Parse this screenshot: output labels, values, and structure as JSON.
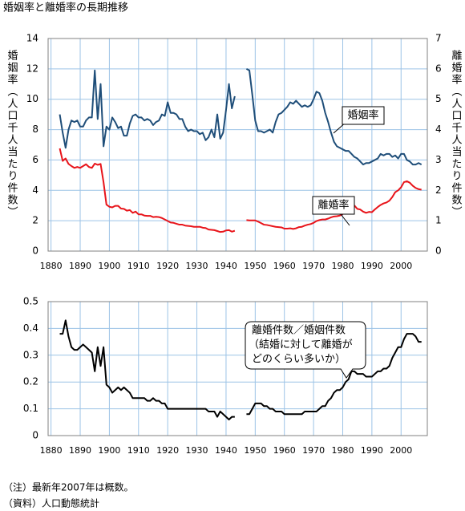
{
  "chart_data": [
    {
      "type": "line",
      "title": "婚姻率と離婚率の長期推移",
      "ylabel": "婚姻率（人口千人当たり件数）",
      "y2label": "離婚率（人口千人当たり件数）",
      "xlim": [
        1879,
        2009
      ],
      "xticks": [
        1880,
        1890,
        1900,
        1910,
        1920,
        1930,
        1940,
        1950,
        1960,
        1970,
        1980,
        1990,
        2000
      ],
      "ylim": [
        0,
        14
      ],
      "yticks": [
        0,
        2,
        4,
        6,
        8,
        10,
        12,
        14
      ],
      "y2lim": [
        0,
        7
      ],
      "y2ticks": [
        0,
        1,
        2,
        3,
        4,
        5,
        6,
        7
      ],
      "grid": true,
      "x": [
        1883,
        1884,
        1885,
        1886,
        1887,
        1888,
        1889,
        1890,
        1891,
        1892,
        1893,
        1894,
        1895,
        1896,
        1897,
        1898,
        1899,
        1900,
        1901,
        1902,
        1903,
        1904,
        1905,
        1906,
        1907,
        1908,
        1909,
        1910,
        1911,
        1912,
        1913,
        1914,
        1915,
        1916,
        1917,
        1918,
        1919,
        1920,
        1921,
        1922,
        1923,
        1924,
        1925,
        1926,
        1927,
        1928,
        1929,
        1930,
        1931,
        1932,
        1933,
        1934,
        1935,
        1936,
        1937,
        1938,
        1939,
        1940,
        1941,
        1942,
        1943,
        1944,
        1945,
        1946,
        1947,
        1948,
        1949,
        1950,
        1951,
        1952,
        1953,
        1954,
        1955,
        1956,
        1957,
        1958,
        1959,
        1960,
        1961,
        1962,
        1963,
        1964,
        1965,
        1966,
        1967,
        1968,
        1969,
        1970,
        1971,
        1972,
        1973,
        1974,
        1975,
        1976,
        1977,
        1978,
        1979,
        1980,
        1981,
        1982,
        1983,
        1984,
        1985,
        1986,
        1987,
        1988,
        1989,
        1990,
        1991,
        1992,
        1993,
        1994,
        1995,
        1996,
        1997,
        1998,
        1999,
        2000,
        2001,
        2002,
        2003,
        2004,
        2005,
        2006,
        2007
      ],
      "series": [
        {
          "name": "婚姻率",
          "color": "#1f4e79",
          "axis": "y",
          "values": [
            9.0,
            7.8,
            6.8,
            8.0,
            8.6,
            8.5,
            8.6,
            8.2,
            8.2,
            8.6,
            8.8,
            8.8,
            11.9,
            8.7,
            11.0,
            6.9,
            8.2,
            8.0,
            8.8,
            8.5,
            8.1,
            8.2,
            7.6,
            7.6,
            8.4,
            8.9,
            9.0,
            8.8,
            8.8,
            8.6,
            8.7,
            8.6,
            8.3,
            8.5,
            8.6,
            9.0,
            8.9,
            9.8,
            9.1,
            9.1,
            9.0,
            8.7,
            8.7,
            8.2,
            7.9,
            8.0,
            7.9,
            7.9,
            7.7,
            7.8,
            7.3,
            7.5,
            8.0,
            7.5,
            9.0,
            7.4,
            7.8,
            9.3,
            11.0,
            9.4,
            10.2,
            null,
            null,
            null,
            12.0,
            11.9,
            10.3,
            8.6,
            7.9,
            7.9,
            7.8,
            7.9,
            8.0,
            7.8,
            8.5,
            9.0,
            9.1,
            9.3,
            9.5,
            9.8,
            9.7,
            9.9,
            9.7,
            9.5,
            9.6,
            9.5,
            9.6,
            10.0,
            10.5,
            10.4,
            9.9,
            9.1,
            8.5,
            7.8,
            7.2,
            6.9,
            6.8,
            6.7,
            6.6,
            6.6,
            6.4,
            6.2,
            6.1,
            5.9,
            5.7,
            5.8,
            5.8,
            5.9,
            6.0,
            6.1,
            6.4,
            6.3,
            6.4,
            6.4,
            6.2,
            6.3,
            6.1,
            6.4,
            6.4,
            6.0,
            5.9,
            5.7,
            5.7,
            5.8,
            5.7
          ]
        },
        {
          "name": "離婚率",
          "color": "#e8141a",
          "axis": "y2",
          "values": [
            3.38,
            2.97,
            3.05,
            2.87,
            2.8,
            2.74,
            2.77,
            2.74,
            2.8,
            2.86,
            2.77,
            2.74,
            2.88,
            2.84,
            2.87,
            2.27,
            1.53,
            1.46,
            1.44,
            1.49,
            1.49,
            1.4,
            1.39,
            1.33,
            1.35,
            1.26,
            1.3,
            1.21,
            1.21,
            1.17,
            1.16,
            1.16,
            1.12,
            1.13,
            1.12,
            1.09,
            1.04,
            0.99,
            0.94,
            0.93,
            0.9,
            0.87,
            0.87,
            0.84,
            0.83,
            0.82,
            0.8,
            0.8,
            0.8,
            0.77,
            0.76,
            0.71,
            0.7,
            0.69,
            0.66,
            0.63,
            0.64,
            0.68,
            0.69,
            0.64,
            0.67,
            null,
            null,
            null,
            1.02,
            1.01,
            1.01,
            1.01,
            0.97,
            0.92,
            0.87,
            0.86,
            0.84,
            0.82,
            0.8,
            0.79,
            0.78,
            0.74,
            0.74,
            0.75,
            0.73,
            0.75,
            0.79,
            0.8,
            0.84,
            0.87,
            0.89,
            0.93,
            0.99,
            1.02,
            1.04,
            1.04,
            1.07,
            1.11,
            1.14,
            1.15,
            1.17,
            1.22,
            1.32,
            1.39,
            1.51,
            1.5,
            1.39,
            1.37,
            1.3,
            1.26,
            1.29,
            1.28,
            1.37,
            1.45,
            1.52,
            1.57,
            1.6,
            1.66,
            1.78,
            1.94,
            2.0,
            2.1,
            2.27,
            2.3,
            2.25,
            2.15,
            2.08,
            2.04,
            2.02
          ]
        }
      ]
    },
    {
      "type": "line",
      "annotation": [
        "（結婚に対して離婚が",
        "どのくらい多いか）"
      ],
      "xlim": [
        1879,
        2009
      ],
      "xticks": [
        1880,
        1890,
        1900,
        1910,
        1920,
        1930,
        1940,
        1950,
        1960,
        1970,
        1980,
        1990,
        2000
      ],
      "ylim": [
        0,
        0.5
      ],
      "yticks": [
        0,
        0.1,
        0.2,
        0.3,
        0.4,
        0.5
      ],
      "grid": true,
      "x": [
        1883,
        1884,
        1885,
        1886,
        1887,
        1888,
        1889,
        1890,
        1891,
        1892,
        1893,
        1894,
        1895,
        1896,
        1897,
        1898,
        1899,
        1900,
        1901,
        1902,
        1903,
        1904,
        1905,
        1906,
        1907,
        1908,
        1909,
        1910,
        1911,
        1912,
        1913,
        1914,
        1915,
        1916,
        1917,
        1918,
        1919,
        1920,
        1921,
        1922,
        1923,
        1924,
        1925,
        1926,
        1927,
        1928,
        1929,
        1930,
        1931,
        1932,
        1933,
        1934,
        1935,
        1936,
        1937,
        1938,
        1939,
        1940,
        1941,
        1942,
        1943,
        1944,
        1945,
        1946,
        1947,
        1948,
        1949,
        1950,
        1951,
        1952,
        1953,
        1954,
        1955,
        1956,
        1957,
        1958,
        1959,
        1960,
        1961,
        1962,
        1963,
        1964,
        1965,
        1966,
        1967,
        1968,
        1969,
        1970,
        1971,
        1972,
        1973,
        1974,
        1975,
        1976,
        1977,
        1978,
        1979,
        1980,
        1981,
        1982,
        1983,
        1984,
        1985,
        1986,
        1987,
        1988,
        1989,
        1990,
        1991,
        1992,
        1993,
        1994,
        1995,
        1996,
        1997,
        1998,
        1999,
        2000,
        2001,
        2002,
        2003,
        2004,
        2005,
        2006,
        2007
      ],
      "series": [
        {
          "name": "離婚件数／婚姻件数",
          "color": "#000000",
          "axis": "y",
          "values": [
            0.38,
            0.38,
            0.43,
            0.37,
            0.33,
            0.32,
            0.32,
            0.33,
            0.34,
            0.33,
            0.32,
            0.31,
            0.24,
            0.33,
            0.26,
            0.33,
            0.19,
            0.18,
            0.16,
            0.17,
            0.18,
            0.17,
            0.18,
            0.17,
            0.16,
            0.14,
            0.14,
            0.14,
            0.14,
            0.14,
            0.13,
            0.13,
            0.14,
            0.13,
            0.13,
            0.12,
            0.12,
            0.1,
            0.1,
            0.1,
            0.1,
            0.1,
            0.1,
            0.1,
            0.1,
            0.1,
            0.1,
            0.1,
            0.1,
            0.1,
            0.1,
            0.09,
            0.09,
            0.09,
            0.07,
            0.09,
            0.08,
            0.07,
            0.06,
            0.07,
            0.07,
            null,
            null,
            null,
            0.08,
            0.08,
            0.1,
            0.12,
            0.12,
            0.12,
            0.11,
            0.11,
            0.1,
            0.1,
            0.09,
            0.09,
            0.09,
            0.08,
            0.08,
            0.08,
            0.08,
            0.08,
            0.08,
            0.08,
            0.09,
            0.09,
            0.09,
            0.09,
            0.09,
            0.1,
            0.11,
            0.11,
            0.13,
            0.14,
            0.16,
            0.17,
            0.17,
            0.18,
            0.2,
            0.21,
            0.24,
            0.24,
            0.23,
            0.23,
            0.23,
            0.22,
            0.22,
            0.22,
            0.23,
            0.24,
            0.24,
            0.25,
            0.25,
            0.26,
            0.29,
            0.31,
            0.33,
            0.33,
            0.36,
            0.38,
            0.38,
            0.38,
            0.37,
            0.35,
            0.35
          ]
        }
      ]
    }
  ],
  "notes": [
    "（注）最新年2007年は概数。",
    "（資料）人口動態統計"
  ]
}
